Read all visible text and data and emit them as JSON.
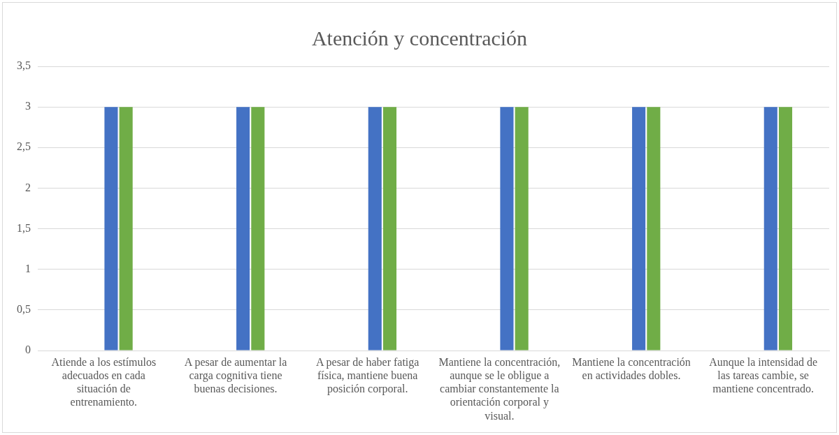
{
  "chart_data": {
    "type": "bar",
    "title": "Atención y concentración",
    "categories": [
      "Atiende a los estímulos adecuados en cada situación de entrenamiento.",
      "A pesar de aumentar la carga cognitiva tiene buenas decisiones.",
      "A pesar de haber fatiga física, mantiene buena posición corporal.",
      "Mantiene la concentración, aunque se le obligue a cambiar constantemente la orientación corporal y visual.",
      "Mantiene la concentración en actividades dobles.",
      "Aunque la intensidad de las tareas cambie, se mantiene concentrado."
    ],
    "series": [
      {
        "values": [
          0,
          0,
          0,
          0,
          0,
          0
        ]
      },
      {
        "values": [
          0,
          0,
          0,
          0,
          0,
          0
        ]
      },
      {
        "color": "#4472c4",
        "values": [
          3,
          3,
          3,
          3,
          3,
          3
        ]
      },
      {
        "color": "#70ad47",
        "values": [
          3,
          3,
          3,
          3,
          3,
          3
        ]
      }
    ],
    "ylim": [
      0,
      3.5
    ],
    "yticks": [
      0,
      {
        "value": 0.5,
        "label": "0,5"
      },
      1,
      {
        "value": 1.5,
        "label": "1,5"
      },
      2,
      {
        "value": 2.5,
        "label": "2,5"
      },
      3,
      {
        "value": 3.5,
        "label": "3,5"
      }
    ],
    "grid": "y",
    "legend": false
  }
}
